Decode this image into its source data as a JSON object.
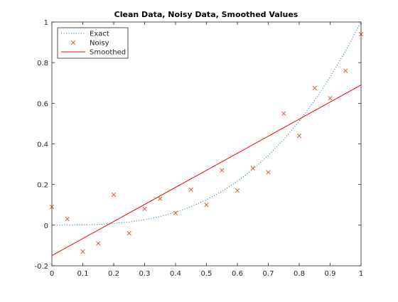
{
  "chart_data": {
    "type": "line",
    "title": "Clean Data, Noisy Data, Smoothed Values",
    "xlabel": "",
    "ylabel": "",
    "xlim": [
      0,
      1
    ],
    "ylim": [
      -0.2,
      1
    ],
    "xticks": [
      0,
      0.1,
      0.2,
      0.3,
      0.4,
      0.5,
      0.6,
      0.7,
      0.8,
      0.9,
      1
    ],
    "xtick_labels": [
      "0",
      "0.1",
      "0.2",
      "0.3",
      "0.4",
      "0.5",
      "0.6",
      "0.7",
      "0.8",
      "0.9",
      "1"
    ],
    "yticks": [
      -0.2,
      0,
      0.2,
      0.4,
      0.6,
      0.8,
      1
    ],
    "ytick_labels": [
      "-0.2",
      "0",
      "0.2",
      "0.4",
      "0.6",
      "0.8",
      "1"
    ],
    "grid": false,
    "legend_position": "top-left",
    "series": [
      {
        "name": "Exact",
        "style": "dotted",
        "color": "#0072BD",
        "x": [
          0,
          0.05,
          0.1,
          0.15,
          0.2,
          0.25,
          0.3,
          0.35,
          0.4,
          0.45,
          0.5,
          0.55,
          0.6,
          0.65,
          0.7,
          0.75,
          0.8,
          0.85,
          0.9,
          0.95,
          1
        ],
        "y": [
          0,
          0.0001,
          0.001,
          0.0034,
          0.008,
          0.0156,
          0.027,
          0.0429,
          0.064,
          0.0911,
          0.125,
          0.1664,
          0.216,
          0.2746,
          0.343,
          0.4219,
          0.512,
          0.6141,
          0.729,
          0.8574,
          1
        ]
      },
      {
        "name": "Noisy",
        "style": "marker-x",
        "color": "#D95319",
        "x": [
          0,
          0.05,
          0.1,
          0.15,
          0.2,
          0.25,
          0.3,
          0.35,
          0.4,
          0.45,
          0.5,
          0.55,
          0.6,
          0.65,
          0.7,
          0.75,
          0.8,
          0.85,
          0.9,
          0.95,
          1
        ],
        "y": [
          0.09,
          0.03,
          -0.13,
          -0.09,
          0.15,
          -0.04,
          0.08,
          0.13,
          0.06,
          0.175,
          0.1,
          0.27,
          0.17,
          0.28,
          0.26,
          0.55,
          0.44,
          0.675,
          0.625,
          0.76,
          0.94
        ]
      },
      {
        "name": "Smoothed",
        "style": "solid",
        "color": "#FF0000",
        "x": [
          0,
          1
        ],
        "y": [
          -0.15,
          0.69
        ]
      }
    ]
  }
}
